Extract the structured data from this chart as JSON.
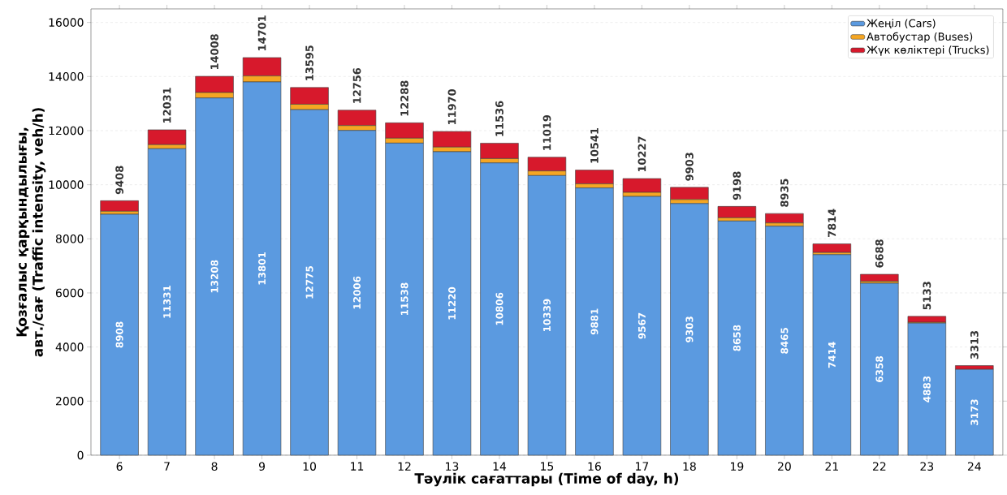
{
  "chart_data": {
    "type": "bar",
    "stacked": true,
    "xlabel": "Тәулік сағаттары (Time of day, h)",
    "ylabel": "Қозғалыс қарқындылығы, авт./сағ (Traffic intensity, veh/h)",
    "categories": [
      "6",
      "7",
      "8",
      "9",
      "10",
      "11",
      "12",
      "13",
      "14",
      "15",
      "16",
      "17",
      "18",
      "19",
      "20",
      "21",
      "22",
      "23",
      "24"
    ],
    "series": [
      {
        "name": "Жеңіл (Cars)",
        "color": "#5b9ae0",
        "values": [
          8908,
          11331,
          13208,
          13801,
          12775,
          12006,
          11538,
          11220,
          10806,
          10339,
          9881,
          9567,
          9303,
          8658,
          8465,
          7414,
          6358,
          4883,
          3173
        ],
        "value_labels": [
          "8908",
          "11331",
          "13208",
          "13801",
          "12775",
          "12006",
          "11538",
          "11220",
          "10806",
          "10339",
          "9881",
          "9567",
          "9303",
          "8658",
          "8465",
          "7414",
          "6358",
          "4883",
          "3173"
        ]
      },
      {
        "name": "Автобустар (Buses)",
        "color": "#f5a623",
        "values": [
          110,
          150,
          200,
          220,
          200,
          180,
          180,
          170,
          160,
          170,
          150,
          150,
          150,
          120,
          120,
          80,
          70,
          30,
          null
        ]
      },
      {
        "name": "Жүк көліктері (Trucks)",
        "color": "#d7192c",
        "values": [
          390,
          550,
          600,
          680,
          620,
          570,
          570,
          580,
          570,
          510,
          510,
          510,
          450,
          420,
          350,
          320,
          260,
          220,
          140
        ]
      }
    ],
    "totals": [
      "9408",
      "12031",
      "14008",
      "14701",
      "13595",
      "12756",
      "12288",
      "11970",
      "11536",
      "11019",
      "10541",
      "10227",
      "9903",
      "9198",
      "8935",
      "7814",
      "6688",
      "5133",
      "3313"
    ],
    "ylim": [
      0,
      16500
    ],
    "yticks": [
      0,
      2000,
      4000,
      6000,
      8000,
      10000,
      12000,
      14000,
      16000
    ],
    "grid": "y",
    "legend": "top right"
  }
}
